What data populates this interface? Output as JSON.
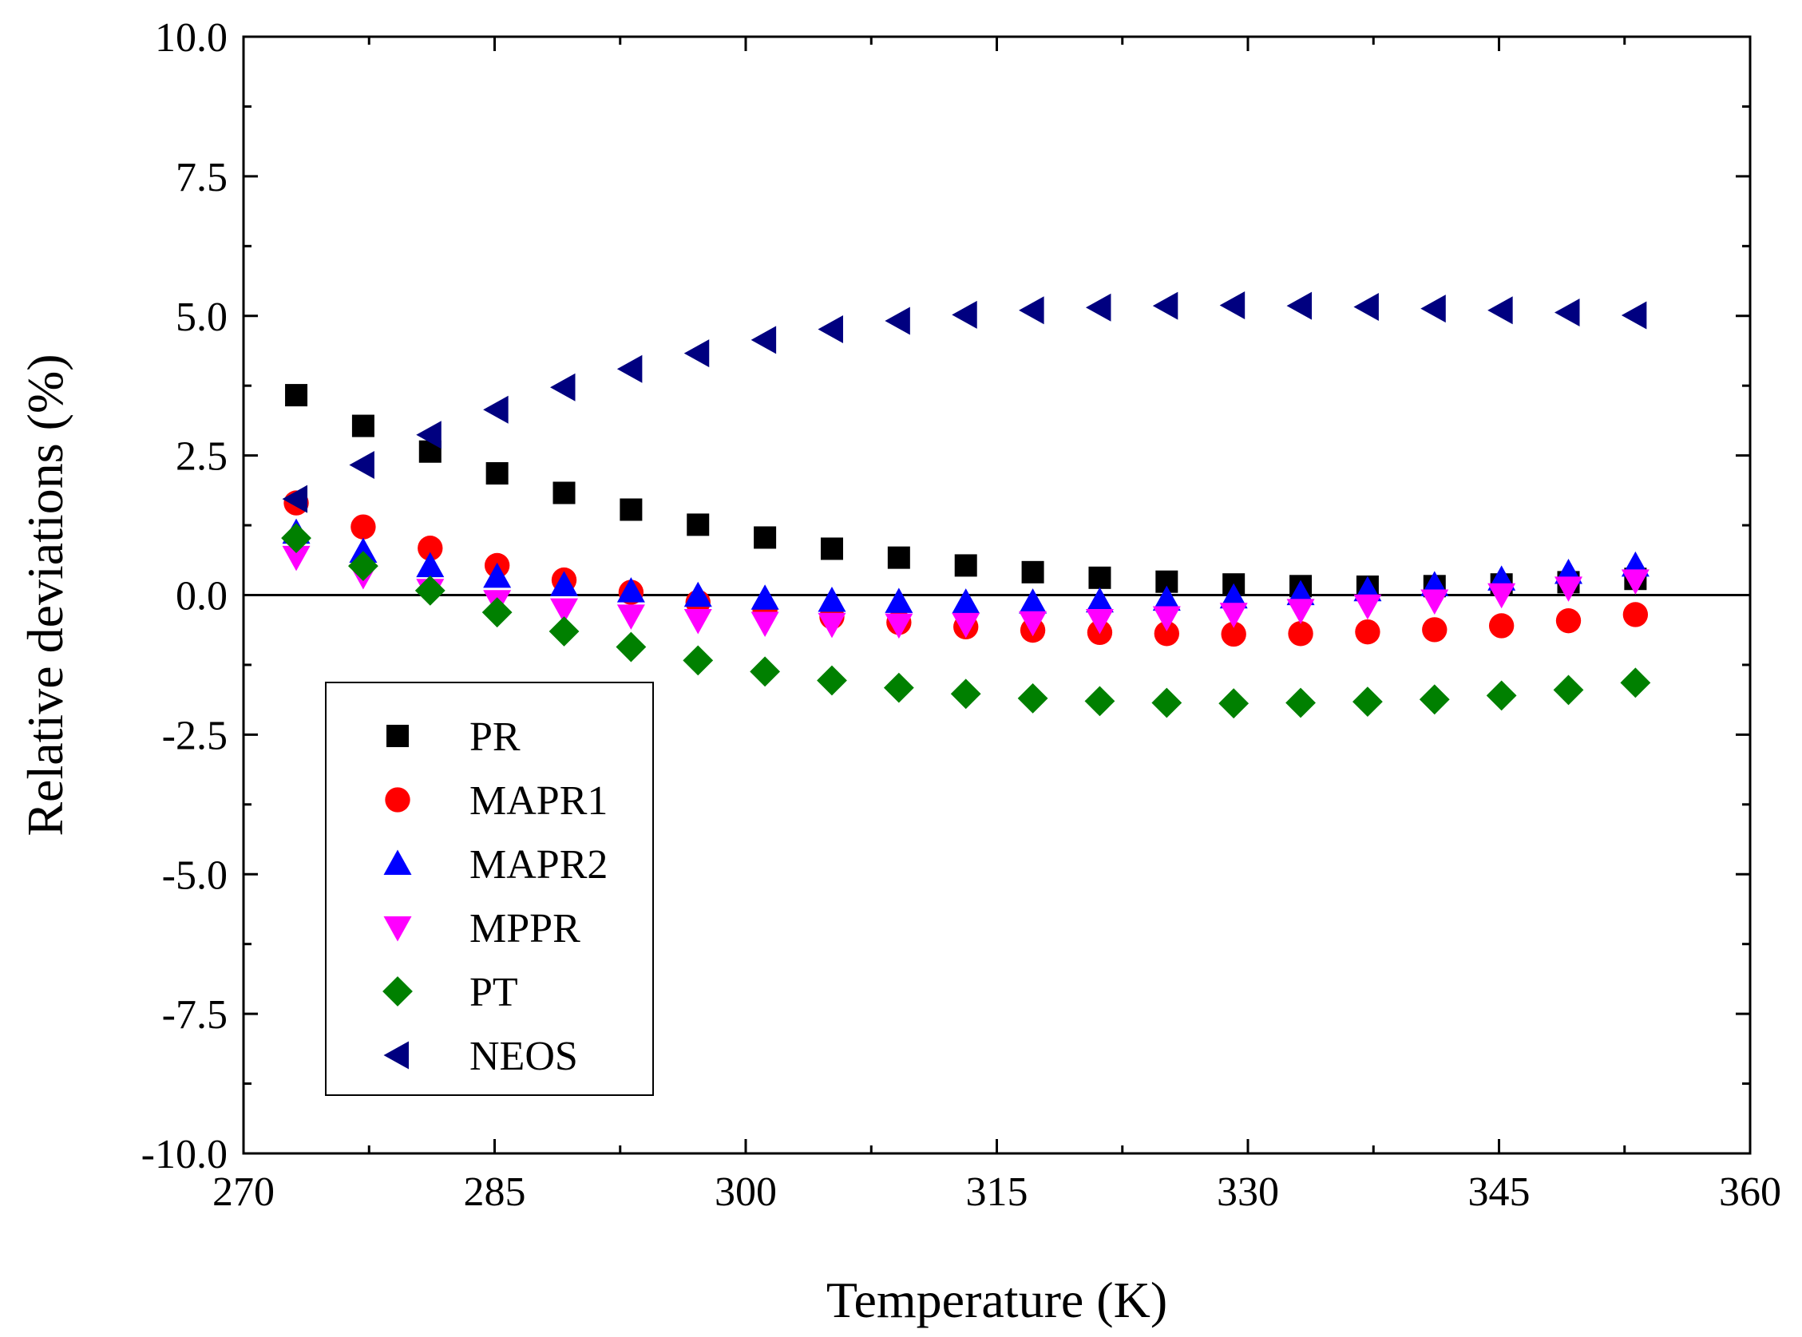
{
  "chart_data": {
    "type": "scatter",
    "title": "",
    "xlabel": "Temperature (K)",
    "ylabel": "Relative deviations (%)",
    "xlim": [
      270,
      360
    ],
    "ylim": [
      -10,
      10
    ],
    "xticks": [
      270,
      285,
      300,
      315,
      330,
      345,
      360
    ],
    "yticks": [
      -10,
      -7.5,
      -5,
      -2.5,
      0,
      2.5,
      5,
      7.5,
      10
    ],
    "xtick_labels": [
      "270",
      "285",
      "300",
      "315",
      "330",
      "345",
      "360"
    ],
    "ytick_labels": [
      "-10.0",
      "-7.5",
      "-5.0",
      "-2.5",
      "0.0",
      "2.5",
      "5.0",
      "7.5",
      "10.0"
    ],
    "reference_line": 0,
    "legend_position": "bottom-left",
    "x": [
      273.15,
      277.15,
      281.15,
      285.15,
      289.15,
      293.15,
      297.15,
      301.15,
      305.15,
      309.15,
      313.15,
      317.15,
      321.15,
      325.15,
      329.15,
      333.15,
      337.15,
      341.15,
      345.15,
      349.15,
      353.15
    ],
    "series": [
      {
        "name": "PR",
        "marker": "square",
        "color": "#000000",
        "values": [
          3.58,
          3.03,
          2.57,
          2.18,
          1.83,
          1.53,
          1.26,
          1.03,
          0.83,
          0.67,
          0.53,
          0.41,
          0.31,
          0.24,
          0.19,
          0.16,
          0.15,
          0.16,
          0.19,
          0.23,
          0.29
        ]
      },
      {
        "name": "MAPR1",
        "marker": "circle",
        "color": "#ff0000",
        "values": [
          1.65,
          1.22,
          0.84,
          0.53,
          0.27,
          0.05,
          -0.13,
          -0.27,
          -0.39,
          -0.49,
          -0.57,
          -0.63,
          -0.67,
          -0.69,
          -0.7,
          -0.69,
          -0.66,
          -0.62,
          -0.55,
          -0.46,
          -0.35
        ]
      },
      {
        "name": "MAPR2",
        "marker": "triangle-up",
        "color": "#0000ff",
        "values": [
          1.12,
          0.78,
          0.52,
          0.33,
          0.18,
          0.07,
          -0.01,
          -0.06,
          -0.1,
          -0.12,
          -0.13,
          -0.13,
          -0.11,
          -0.08,
          -0.04,
          0.02,
          0.09,
          0.18,
          0.28,
          0.4,
          0.53
        ]
      },
      {
        "name": "MPPR",
        "marker": "triangle-down",
        "color": "#ff00ff",
        "values": [
          0.68,
          0.35,
          0.09,
          -0.11,
          -0.26,
          -0.37,
          -0.45,
          -0.5,
          -0.52,
          -0.53,
          -0.52,
          -0.49,
          -0.45,
          -0.4,
          -0.34,
          -0.27,
          -0.19,
          -0.1,
          0.01,
          0.13,
          0.26
        ]
      },
      {
        "name": "PT",
        "marker": "diamond",
        "color": "#008000",
        "values": [
          1.02,
          0.52,
          0.08,
          -0.31,
          -0.65,
          -0.93,
          -1.17,
          -1.37,
          -1.53,
          -1.66,
          -1.77,
          -1.85,
          -1.9,
          -1.93,
          -1.94,
          -1.93,
          -1.91,
          -1.87,
          -1.8,
          -1.7,
          -1.57
        ]
      },
      {
        "name": "NEOS",
        "marker": "triangle-left",
        "color": "#000080",
        "values": [
          1.72,
          2.33,
          2.87,
          3.32,
          3.72,
          4.05,
          4.33,
          4.57,
          4.76,
          4.91,
          5.02,
          5.1,
          5.15,
          5.18,
          5.19,
          5.18,
          5.16,
          5.13,
          5.1,
          5.06,
          5.01
        ]
      }
    ]
  }
}
